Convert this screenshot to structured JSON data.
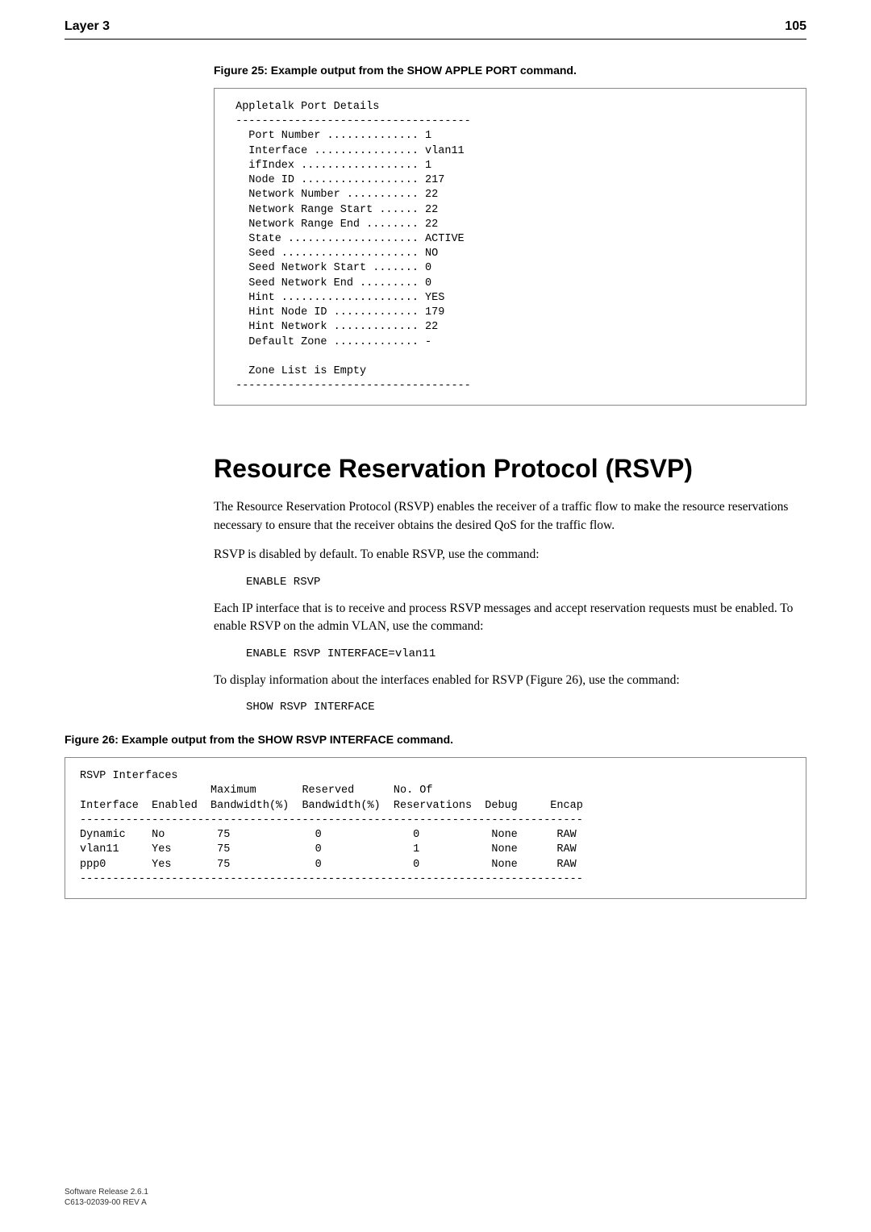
{
  "header": {
    "section": "Layer 3",
    "page": "105"
  },
  "figure25": {
    "caption": "Figure 25: Example output from the SHOW APPLE PORT command.",
    "content": " Appletalk Port Details\n ------------------------------------\n   Port Number .............. 1\n   Interface ................ vlan11\n   ifIndex .................. 1\n   Node ID .................. 217\n   Network Number ........... 22\n   Network Range Start ...... 22\n   Network Range End ........ 22\n   State .................... ACTIVE\n   Seed ..................... NO\n   Seed Network Start ....... 0\n   Seed Network End ......... 0\n   Hint ..................... YES\n   Hint Node ID ............. 179\n   Hint Network ............. 22\n   Default Zone ............. -\n\n   Zone List is Empty\n ------------------------------------"
  },
  "section": {
    "title": "Resource Reservation Protocol (RSVP)",
    "p1": "The Resource Reservation Protocol (RSVP) enables the receiver of a traffic flow to make the resource reservations necessary to ensure that the receiver obtains the desired QoS for the traffic flow.",
    "p2": "RSVP is disabled by default. To enable RSVP, use the command:",
    "code1": "ENABLE RSVP",
    "p3": "Each IP interface that is to receive and process RSVP messages and accept reservation requests must be enabled. To enable RSVP on the admin VLAN, use the command:",
    "code2": "ENABLE RSVP INTERFACE=vlan11",
    "p4": "To display information about the interfaces enabled for RSVP (Figure 26), use the command:",
    "code3": "SHOW RSVP INTERFACE"
  },
  "figure26": {
    "caption": "Figure 26: Example output from the SHOW RSVP INTERFACE command.",
    "content": "RSVP Interfaces\n                    Maximum       Reserved      No. Of\nInterface  Enabled  Bandwidth(%)  Bandwidth(%)  Reservations  Debug     Encap\n-----------------------------------------------------------------------------\nDynamic    No        75             0              0           None      RAW\nvlan11     Yes       75             0              1           None      RAW\nppp0       Yes       75             0              0           None      RAW\n-----------------------------------------------------------------------------"
  },
  "footer": {
    "line1": "Software Release 2.6.1",
    "line2": "C613-02039-00 REV A"
  }
}
